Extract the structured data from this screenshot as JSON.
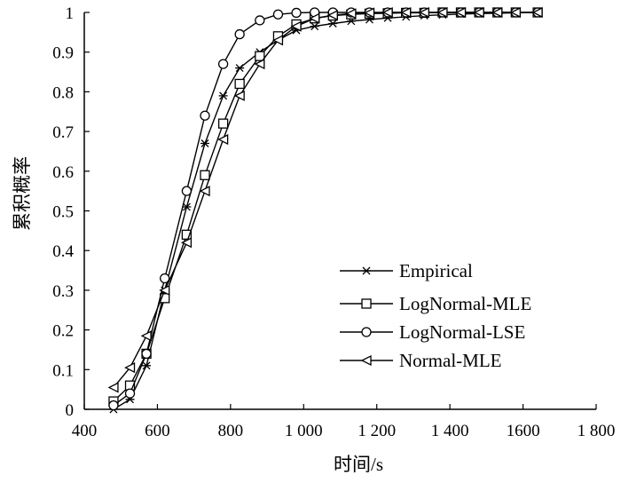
{
  "chart_data": {
    "type": "line",
    "title": "",
    "xlabel": "时间/s",
    "ylabel": "累积概率",
    "xlim": [
      400,
      1800
    ],
    "ylim": [
      0,
      1
    ],
    "x_ticks": [
      400,
      600,
      800,
      1000,
      1200,
      1400,
      1600,
      1800
    ],
    "x_tick_labels": [
      "400",
      "600",
      "800",
      "1 000",
      "1 200",
      "1 400",
      "1600",
      "1 800"
    ],
    "y_ticks": [
      0,
      0.1,
      0.2,
      0.3,
      0.4,
      0.5,
      0.6,
      0.7,
      0.8,
      0.9,
      1
    ],
    "y_tick_labels": [
      "0",
      "0.1",
      "0.2",
      "0.3",
      "0.4",
      "0.5",
      "0.6",
      "0.7",
      "0.8",
      "0.9",
      "1"
    ],
    "grid": false,
    "legend_position": "bottom-right",
    "series": [
      {
        "name": "Empirical",
        "marker": "asterisk",
        "x": [
          480,
          525,
          570,
          620,
          680,
          730,
          780,
          825,
          880,
          930,
          980,
          1030,
          1080,
          1130,
          1180,
          1230,
          1280,
          1330,
          1380,
          1430,
          1480,
          1530,
          1580,
          1640
        ],
        "y": [
          0.0,
          0.025,
          0.11,
          0.3,
          0.51,
          0.67,
          0.79,
          0.86,
          0.9,
          0.93,
          0.955,
          0.965,
          0.972,
          0.978,
          0.982,
          0.986,
          0.989,
          0.992,
          0.994,
          0.996,
          0.997,
          0.998,
          0.999,
          1.0
        ]
      },
      {
        "name": "LogNormal-MLE",
        "marker": "square",
        "x": [
          480,
          525,
          570,
          620,
          680,
          730,
          780,
          825,
          880,
          930,
          980,
          1030,
          1080,
          1130,
          1180,
          1230,
          1280,
          1330,
          1380,
          1430,
          1480,
          1530,
          1580,
          1640
        ],
        "y": [
          0.02,
          0.06,
          0.14,
          0.28,
          0.44,
          0.59,
          0.72,
          0.82,
          0.89,
          0.94,
          0.97,
          0.985,
          0.992,
          0.995,
          0.997,
          0.998,
          0.999,
          0.999,
          1.0,
          1.0,
          1.0,
          1.0,
          1.0,
          1.0
        ]
      },
      {
        "name": "LogNormal-LSE",
        "marker": "circle",
        "x": [
          480,
          525,
          570,
          620,
          680,
          730,
          780,
          825,
          880,
          930,
          980,
          1030,
          1080,
          1130,
          1180,
          1230,
          1280,
          1330,
          1380,
          1430,
          1480,
          1530,
          1580,
          1640
        ],
        "y": [
          0.01,
          0.04,
          0.14,
          0.33,
          0.55,
          0.74,
          0.87,
          0.945,
          0.98,
          0.995,
          0.999,
          1.0,
          1.0,
          1.0,
          1.0,
          1.0,
          1.0,
          1.0,
          1.0,
          1.0,
          1.0,
          1.0,
          1.0,
          1.0
        ]
      },
      {
        "name": "Normal-MLE",
        "marker": "triangle-left",
        "x": [
          480,
          525,
          570,
          620,
          680,
          730,
          780,
          825,
          880,
          930,
          980,
          1030,
          1080,
          1130,
          1180,
          1230,
          1280,
          1330,
          1380,
          1430,
          1480,
          1530,
          1580,
          1640
        ],
        "y": [
          0.055,
          0.105,
          0.185,
          0.3,
          0.42,
          0.55,
          0.68,
          0.79,
          0.87,
          0.93,
          0.965,
          0.985,
          0.993,
          0.997,
          0.999,
          1.0,
          1.0,
          1.0,
          1.0,
          1.0,
          1.0,
          1.0,
          1.0,
          1.0
        ]
      }
    ]
  }
}
